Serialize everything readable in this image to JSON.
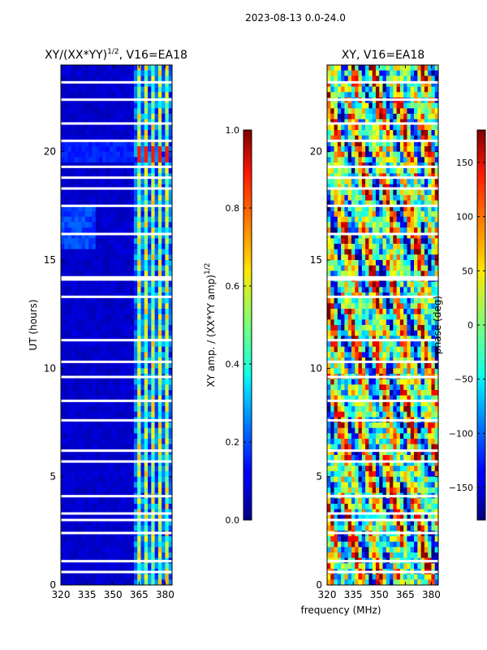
{
  "figure": {
    "suptitle": "2023-08-13 0.0-24.0",
    "shared_xlabel": "frequency (MHz)"
  },
  "chart_data": [
    {
      "type": "heatmap",
      "title_main": "XY/(XX*YY)",
      "title_sup": "1/2",
      "title_tail": ", V16=EA18",
      "x_ticks": [
        320,
        335,
        350,
        365,
        380
      ],
      "y_ticks": [
        0,
        5,
        10,
        15,
        20
      ],
      "xlim": [
        320,
        384
      ],
      "ylim": [
        0,
        24
      ],
      "ylabel": "UT (hours)",
      "colormap": "jet",
      "colorbar": {
        "label_main": "XY amp. / (XX*YY amp)",
        "label_sup": "1/2",
        "range": [
          0.0,
          1.0
        ],
        "ticks": [
          "0.0",
          "0.2",
          "0.4",
          "0.6",
          "0.8",
          "1.0"
        ],
        "tick_values": [
          0.0,
          0.2,
          0.4,
          0.6,
          0.8,
          1.0
        ]
      },
      "bright_channels_mhz": [
        365,
        369,
        373,
        377,
        381
      ],
      "gap_hours": [
        0.6,
        1.1,
        2.4,
        3.0,
        3.3,
        4.1,
        5.7,
        6.2,
        7.6,
        8.5,
        9.6,
        10.3,
        11.3,
        13.3,
        14.1,
        14.2,
        16.2,
        17.5,
        18.3,
        18.8,
        19.3,
        20.5,
        21.3,
        22.4,
        23.2
      ]
    },
    {
      "type": "heatmap",
      "title": "XY, V16=EA18",
      "x_ticks": [
        320,
        335,
        350,
        365,
        380
      ],
      "y_ticks": [
        0,
        5,
        10,
        15,
        20
      ],
      "xlim": [
        320,
        384
      ],
      "ylim": [
        0,
        24
      ],
      "colormap": "jet",
      "colorbar": {
        "label": "phase (deg)",
        "range": [
          -180,
          180
        ],
        "ticks": [
          "150",
          "100",
          "50",
          "0",
          "−50",
          "−100",
          "−150"
        ],
        "tick_values": [
          150,
          100,
          50,
          0,
          -50,
          -100,
          -150
        ]
      },
      "gap_hours": [
        0.6,
        1.1,
        2.4,
        3.0,
        3.3,
        4.1,
        5.7,
        6.2,
        7.6,
        8.5,
        9.6,
        10.3,
        11.3,
        13.3,
        14.1,
        14.2,
        16.2,
        17.5,
        18.3,
        18.8,
        19.3,
        20.5,
        21.3,
        22.4,
        23.2
      ]
    }
  ]
}
